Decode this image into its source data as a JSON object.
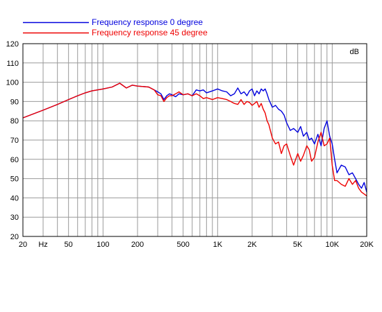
{
  "chart_data": {
    "type": "line",
    "title": "",
    "xlabel": "",
    "ylabel": "dB",
    "xscale": "log",
    "xlim": [
      20,
      20000
    ],
    "ylim": [
      20,
      120
    ],
    "grid": true,
    "legend_position": "top-left",
    "y_ticks": [
      20,
      30,
      40,
      50,
      60,
      70,
      80,
      90,
      100,
      110,
      120
    ],
    "x_ticks": [
      {
        "value": 20,
        "label": "20"
      },
      {
        "value": 30,
        "label": "Hz"
      },
      {
        "value": 50,
        "label": "50"
      },
      {
        "value": 100,
        "label": "100"
      },
      {
        "value": 200,
        "label": "200"
      },
      {
        "value": 500,
        "label": "500"
      },
      {
        "value": 1000,
        "label": "1K"
      },
      {
        "value": 2000,
        "label": "2K"
      },
      {
        "value": 5000,
        "label": "5K"
      },
      {
        "value": 10000,
        "label": "10K"
      },
      {
        "value": 20000,
        "label": "20K"
      }
    ],
    "series": [
      {
        "name": "Frequency response 0 degree",
        "color": "#0000dd",
        "x": [
          20,
          30,
          40,
          50,
          60,
          70,
          80,
          100,
          120,
          140,
          160,
          180,
          200,
          250,
          280,
          300,
          320,
          340,
          360,
          380,
          400,
          430,
          460,
          500,
          550,
          600,
          650,
          700,
          750,
          800,
          900,
          1000,
          1100,
          1200,
          1300,
          1400,
          1500,
          1600,
          1700,
          1800,
          1900,
          2000,
          2100,
          2200,
          2300,
          2400,
          2500,
          2600,
          2700,
          2800,
          3000,
          3200,
          3400,
          3600,
          3800,
          4000,
          4300,
          4600,
          5000,
          5300,
          5600,
          6000,
          6300,
          6600,
          7000,
          7500,
          8000,
          8500,
          9000,
          9500,
          10000,
          10500,
          11000,
          12000,
          13000,
          14000,
          15000,
          16000,
          17000,
          18000,
          19000,
          20000
        ],
        "y": [
          81.5,
          85.5,
          88.5,
          91,
          93,
          94.5,
          95.5,
          96.5,
          97.5,
          99.5,
          97,
          98.5,
          98,
          97.5,
          96,
          95,
          94,
          91,
          93,
          94,
          93.5,
          92.5,
          94,
          93.5,
          94,
          93,
          96,
          95.5,
          96,
          94.5,
          95.5,
          96.5,
          95.5,
          95,
          93,
          94,
          97,
          94,
          95,
          93,
          95.5,
          96.5,
          93,
          95.5,
          94,
          96.5,
          95.5,
          96.5,
          94,
          91,
          87,
          88,
          86,
          85,
          83,
          79,
          75,
          76,
          74,
          77,
          72,
          74,
          70,
          71,
          68,
          73,
          67,
          76,
          80,
          72,
          68,
          60,
          53,
          57,
          56,
          52,
          53,
          50,
          47,
          45,
          48,
          43
        ]
      },
      {
        "name": "Frequency response 45 degree",
        "color": "#ee0000",
        "x": [
          20,
          30,
          40,
          50,
          60,
          70,
          80,
          100,
          120,
          140,
          160,
          180,
          200,
          250,
          280,
          300,
          320,
          340,
          360,
          380,
          400,
          430,
          460,
          500,
          550,
          600,
          650,
          700,
          750,
          800,
          900,
          1000,
          1100,
          1200,
          1300,
          1400,
          1500,
          1600,
          1700,
          1800,
          1900,
          2000,
          2100,
          2200,
          2300,
          2400,
          2500,
          2600,
          2700,
          2800,
          3000,
          3200,
          3400,
          3600,
          3800,
          4000,
          4300,
          4600,
          5000,
          5300,
          5600,
          6000,
          6300,
          6600,
          7000,
          7500,
          8000,
          8500,
          9000,
          9500,
          10000,
          10500,
          11000,
          12000,
          13000,
          14000,
          15000,
          16000,
          17000,
          18000,
          19000,
          20000
        ],
        "y": [
          81.5,
          85.5,
          88.5,
          91,
          93,
          94.5,
          95.5,
          96.5,
          97.5,
          99.5,
          97,
          98.5,
          98,
          97.5,
          96,
          93.5,
          93,
          90,
          92,
          93,
          93,
          94,
          95,
          93.5,
          94,
          93,
          94,
          93,
          91.5,
          92,
          91,
          92,
          91.5,
          91,
          90,
          89,
          88.5,
          91,
          88.5,
          90,
          89.5,
          88,
          89,
          90,
          87,
          89,
          86,
          84,
          80,
          78,
          71,
          68,
          69,
          63,
          67,
          68,
          62,
          57,
          63,
          59,
          62,
          67,
          65,
          59,
          61,
          69,
          74,
          67,
          68,
          71,
          57,
          49,
          49,
          47,
          46,
          50,
          47,
          49,
          45,
          43,
          42,
          41
        ]
      }
    ]
  }
}
